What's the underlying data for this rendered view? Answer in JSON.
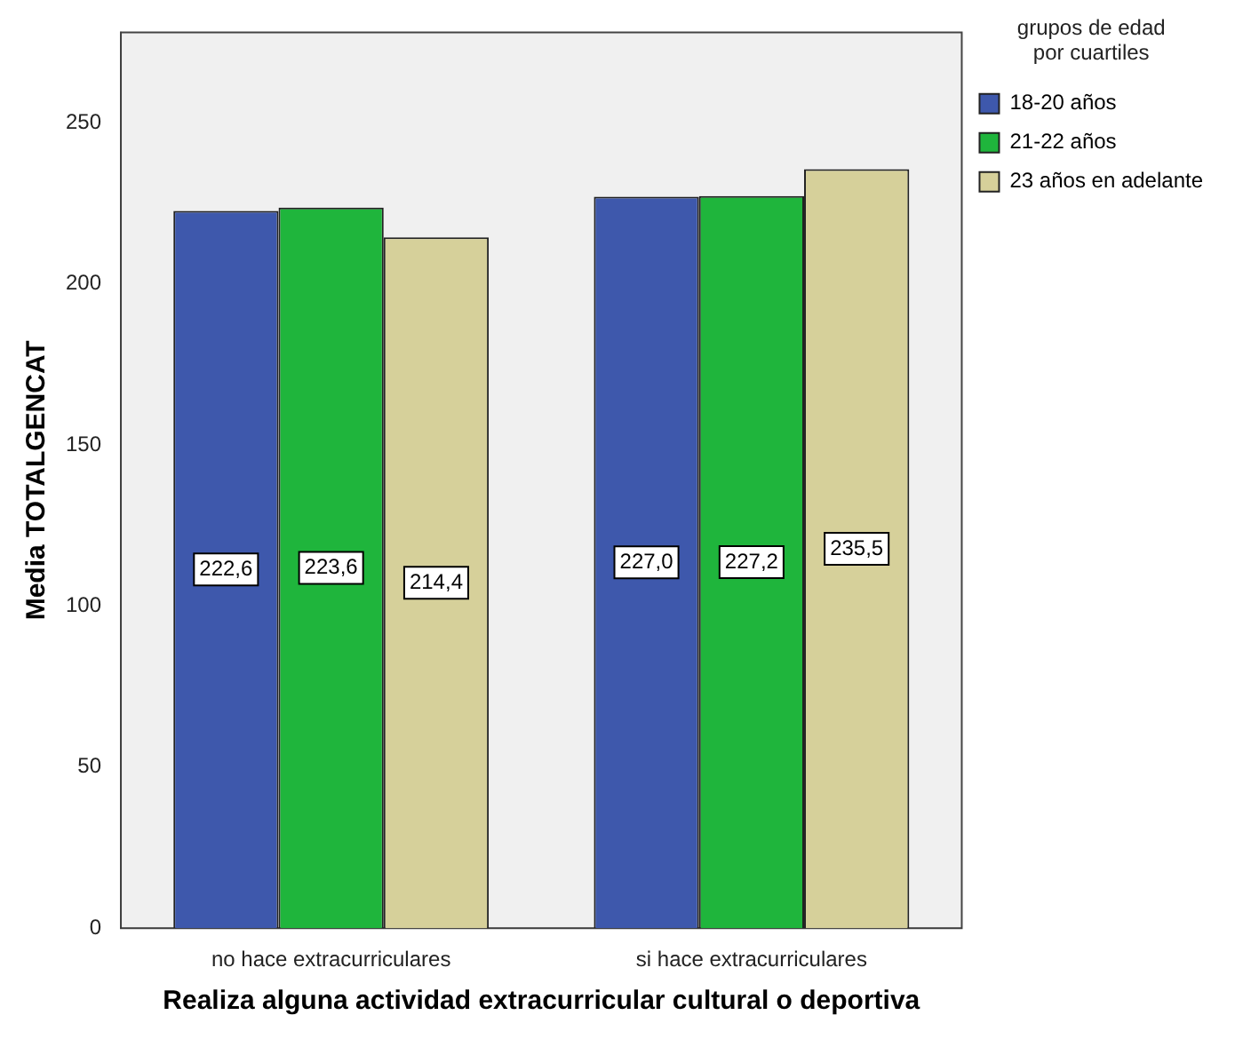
{
  "chart_data": {
    "type": "bar",
    "xlabel": "Realiza alguna actividad extracurricular cultural o deportiva",
    "ylabel": "Media TOTALGENCAT",
    "legend_title": "grupos de edad por cuartiles",
    "categories": [
      "no hace extracurriculares",
      "si hace extracurriculares"
    ],
    "series": [
      {
        "name": "18-20 años",
        "color": "#3e58ac",
        "values": [
          222.6,
          227.0
        ],
        "value_labels": [
          "222,6",
          "227,0"
        ]
      },
      {
        "name": "21-22 años",
        "color": "#1fb53c",
        "values": [
          223.6,
          227.2
        ],
        "value_labels": [
          "223,6",
          "227,2"
        ]
      },
      {
        "name": "23 años en adelante",
        "color": "#d6d09a",
        "values": [
          214.4,
          235.5
        ],
        "value_labels": [
          "214,4",
          "235,5"
        ]
      }
    ],
    "ylim": [
      0,
      278
    ],
    "yticks": [
      0,
      50,
      100,
      150,
      200,
      250
    ],
    "grid": false,
    "legend": "top right"
  }
}
